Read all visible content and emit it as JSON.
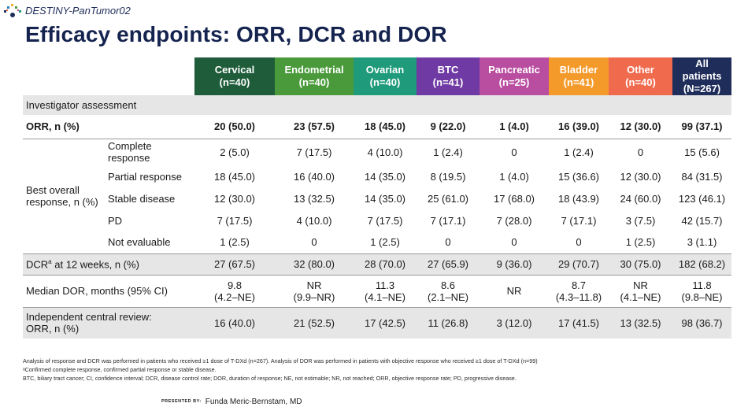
{
  "header": {
    "study": "DESTINY-PanTumor02",
    "title": "Efficacy endpoints: ORR, DCR and DOR"
  },
  "columns": [
    {
      "name": "Cervical",
      "n": "(n=40)",
      "color": "#1e5c3a"
    },
    {
      "name": "Endometrial",
      "n": "(n=40)",
      "color": "#4a9a3c"
    },
    {
      "name": "Ovarian",
      "n": "(n=40)",
      "color": "#1f9a7a"
    },
    {
      "name": "BTC",
      "n": "(n=41)",
      "color": "#6f3aa3"
    },
    {
      "name": "Pancreatic",
      "n": "(n=25)",
      "color": "#b94da0"
    },
    {
      "name": "Bladder",
      "n": "(n=41)",
      "color": "#f49a2b"
    },
    {
      "name": "Other",
      "n": "(n=40)",
      "color": "#f06a4e"
    },
    {
      "name": "All patients",
      "n": "(N=267)",
      "color": "#1f2d5a"
    }
  ],
  "rows": {
    "investigator": "Investigator assessment",
    "orr": {
      "label": "ORR, n (%)",
      "values": [
        "20 (50.0)",
        "23 (57.5)",
        "18 (45.0)",
        "9 (22.0)",
        "1 (4.0)",
        "16 (39.0)",
        "12 (30.0)",
        "99 (37.1)"
      ]
    },
    "best_overall_label": "Best overall response, n (%)",
    "cr": {
      "label": "Complete response",
      "values": [
        "2 (5.0)",
        "7 (17.5)",
        "4 (10.0)",
        "1 (2.4)",
        "0",
        "1 (2.4)",
        "0",
        "15 (5.6)"
      ]
    },
    "pr": {
      "label": "Partial response",
      "values": [
        "18 (45.0)",
        "16 (40.0)",
        "14 (35.0)",
        "8 (19.5)",
        "1 (4.0)",
        "15 (36.6)",
        "12 (30.0)",
        "84 (31.5)"
      ]
    },
    "sd": {
      "label": "Stable disease",
      "values": [
        "12 (30.0)",
        "13 (32.5)",
        "14 (35.0)",
        "25 (61.0)",
        "17 (68.0)",
        "18 (43.9)",
        "24 (60.0)",
        "123 (46.1)"
      ]
    },
    "pd": {
      "label": "PD",
      "values": [
        "7 (17.5)",
        "4 (10.0)",
        "7 (17.5)",
        "7 (17.1)",
        "7 (28.0)",
        "7 (17.1)",
        "3 (7.5)",
        "42 (15.7)"
      ]
    },
    "ne": {
      "label": "Not evaluable",
      "values": [
        "1 (2.5)",
        "0",
        "1 (2.5)",
        "0",
        "0",
        "0",
        "1 (2.5)",
        "3 (1.1)"
      ]
    },
    "dcr": {
      "label_main": "DCR",
      "label_sup": "a",
      "label_rest": " at 12 weeks, n (%)",
      "values": [
        "27 (67.5)",
        "32 (80.0)",
        "28 (70.0)",
        "27 (65.9)",
        "9 (36.0)",
        "29 (70.7)",
        "30 (75.0)",
        "182 (68.2)"
      ]
    },
    "dor": {
      "label": "Median DOR, months (95% CI)",
      "values": [
        [
          "9.8",
          "(4.2–NE)"
        ],
        [
          "NR",
          "(9.9–NR)"
        ],
        [
          "11.3",
          "(4.1–NE)"
        ],
        [
          "8.6",
          "(2.1–NE)"
        ],
        [
          "NR",
          ""
        ],
        [
          "8.7",
          "(4.3–11.8)"
        ],
        [
          "NR",
          "(4.1–NE)"
        ],
        [
          "11.8",
          "(9.8–NE)"
        ]
      ]
    },
    "icr": {
      "label_1": "Independent central review:",
      "label_2": "ORR, n (%)",
      "values": [
        "16 (40.0)",
        "21 (52.5)",
        "17 (42.5)",
        "11 (26.8)",
        "3 (12.0)",
        "17 (41.5)",
        "13 (32.5)",
        "98 (36.7)"
      ]
    }
  },
  "footnotes": [
    "Analysis of response and DCR was performed in patients who received ≥1 dose of T-DXd (n=267). Analysis of DOR was performed in patients with objective response who received ≥1 dose of T-DXd (n=99)",
    "ᵃConfirmed complete response, confirmed partial response or stable disease.",
    "BTC, biliary tract cancer; CI, confidence interval; DCR, disease control rate; DOR, duration of response; NE, not estimable; NR, not reached; ORR, objective response rate; PD, progressive disease."
  ],
  "presenter": {
    "prefix": "PRESENTED BY:",
    "name": "Funda Meric-Bernstam, MD"
  }
}
